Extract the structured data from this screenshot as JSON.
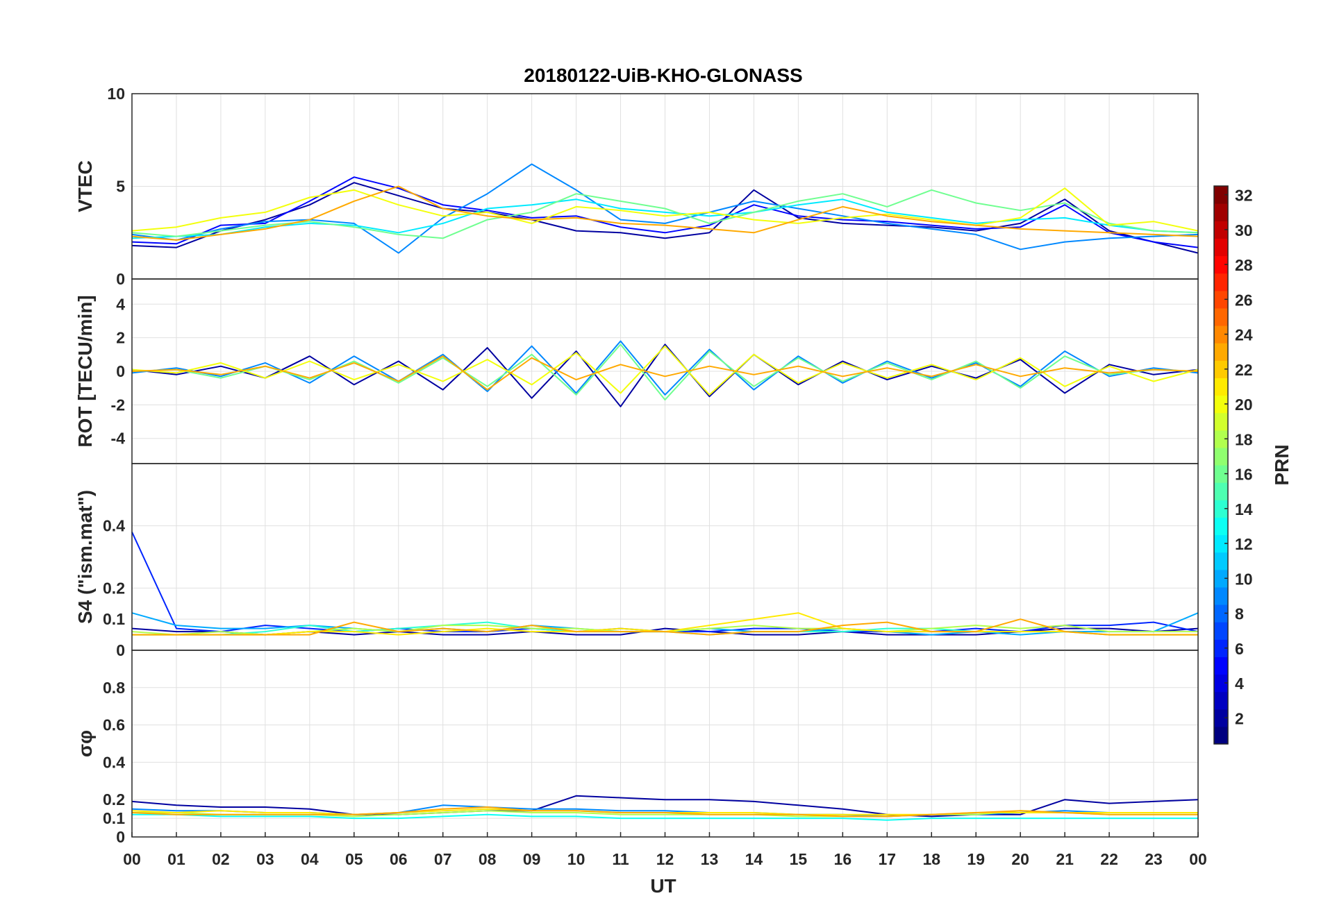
{
  "chart_data": {
    "type": "line",
    "title": "20180122-UiB-KHO-GLONASS",
    "xlabel": "UT",
    "x_ticks": [
      "00",
      "01",
      "02",
      "03",
      "04",
      "05",
      "06",
      "07",
      "08",
      "09",
      "10",
      "11",
      "12",
      "13",
      "14",
      "15",
      "16",
      "17",
      "18",
      "19",
      "20",
      "21",
      "22",
      "23",
      "00"
    ],
    "xlim_hours": [
      0,
      24
    ],
    "grid": true,
    "panels": [
      {
        "id": "vtec",
        "ylabel": "VTEC",
        "ylim": [
          0,
          10
        ],
        "y_ticks": [
          0,
          5,
          10
        ],
        "series": [
          {
            "prn": 2,
            "values": [
              1.8,
              1.7,
              2.6,
              3.2,
              4.0,
              5.2,
              4.5,
              3.8,
              3.6,
              3.2,
              2.6,
              2.5,
              2.2,
              2.5,
              4.8,
              3.3,
              3.0,
              2.9,
              2.8,
              2.6,
              3.0,
              4.3,
              2.6,
              2.0,
              1.4
            ]
          },
          {
            "prn": 5,
            "values": [
              2.0,
              1.9,
              2.9,
              3.0,
              4.2,
              5.5,
              4.9,
              4.0,
              3.7,
              3.3,
              3.4,
              2.8,
              2.5,
              2.9,
              4.0,
              3.4,
              3.2,
              3.1,
              2.9,
              2.7,
              2.8,
              4.0,
              2.5,
              2.0,
              1.7
            ]
          },
          {
            "prn": 9,
            "values": [
              2.4,
              2.1,
              2.7,
              3.1,
              3.2,
              3.0,
              1.4,
              3.3,
              4.6,
              6.2,
              4.8,
              3.2,
              3.0,
              3.6,
              4.2,
              3.8,
              3.4,
              3.0,
              2.7,
              2.4,
              1.6,
              2.0,
              2.2,
              2.3,
              2.4
            ]
          },
          {
            "prn": 12,
            "values": [
              2.2,
              2.3,
              2.4,
              2.8,
              3.0,
              2.9,
              2.5,
              3.0,
              3.8,
              4.0,
              4.3,
              3.8,
              3.6,
              3.4,
              3.6,
              4.0,
              4.3,
              3.6,
              3.3,
              3.0,
              3.2,
              3.3,
              2.9,
              2.6,
              2.5
            ]
          },
          {
            "prn": 16,
            "values": [
              2.5,
              2.3,
              2.6,
              2.9,
              3.1,
              2.8,
              2.4,
              2.2,
              3.2,
              3.6,
              4.6,
              4.2,
              3.8,
              3.0,
              3.6,
              4.2,
              4.6,
              3.9,
              4.8,
              4.1,
              3.7,
              4.1,
              3.0,
              2.6,
              2.5
            ]
          },
          {
            "prn": 20,
            "values": [
              2.6,
              2.8,
              3.3,
              3.6,
              4.4,
              4.8,
              4.0,
              3.4,
              3.6,
              3.0,
              3.9,
              3.7,
              3.4,
              3.6,
              3.2,
              3.0,
              3.3,
              3.5,
              3.2,
              2.9,
              3.3,
              4.9,
              2.9,
              3.1,
              2.6
            ]
          },
          {
            "prn": 23,
            "values": [
              2.3,
              2.1,
              2.4,
              2.7,
              3.2,
              4.2,
              5.0,
              3.8,
              3.4,
              3.2,
              3.3,
              3.0,
              2.9,
              2.7,
              2.5,
              3.2,
              3.9,
              3.4,
              3.1,
              2.9,
              2.7,
              2.6,
              2.5,
              2.4,
              2.3
            ]
          }
        ]
      },
      {
        "id": "rot",
        "ylabel": "ROT [TECU/min]",
        "ylim": [
          -5.5,
          5.5
        ],
        "y_ticks": [
          -4,
          -2,
          0,
          2,
          4
        ],
        "series": [
          {
            "prn": 2,
            "values": [
              0.1,
              -0.2,
              0.3,
              -0.4,
              0.9,
              -0.8,
              0.6,
              -1.1,
              1.4,
              -1.6,
              1.2,
              -2.1,
              1.6,
              -1.5,
              1.0,
              -0.8,
              0.6,
              -0.5,
              0.3,
              -0.4,
              0.7,
              -1.3,
              0.4,
              -0.2,
              0.1
            ]
          },
          {
            "prn": 9,
            "values": [
              -0.1,
              0.2,
              -0.3,
              0.5,
              -0.7,
              0.9,
              -0.6,
              1.0,
              -1.2,
              1.5,
              -1.3,
              1.8,
              -1.4,
              1.3,
              -1.1,
              0.9,
              -0.7,
              0.6,
              -0.4,
              0.5,
              -0.9,
              1.2,
              -0.3,
              0.2,
              -0.1
            ]
          },
          {
            "prn": 16,
            "values": [
              0.0,
              0.1,
              -0.4,
              0.3,
              -0.5,
              0.6,
              -0.7,
              0.8,
              -0.9,
              1.0,
              -1.4,
              1.6,
              -1.7,
              1.2,
              -0.9,
              0.8,
              -0.6,
              0.5,
              -0.5,
              0.6,
              -1.0,
              0.9,
              -0.2,
              0.1,
              0.0
            ]
          },
          {
            "prn": 20,
            "values": [
              0.1,
              -0.1,
              0.5,
              -0.4,
              0.6,
              -0.5,
              0.4,
              -0.6,
              0.7,
              -0.8,
              1.1,
              -1.3,
              1.5,
              -1.4,
              1.0,
              -0.7,
              0.5,
              -0.4,
              0.4,
              -0.5,
              0.8,
              -0.9,
              0.3,
              -0.6,
              0.1
            ]
          },
          {
            "prn": 23,
            "values": [
              0.0,
              0.1,
              -0.2,
              0.3,
              -0.4,
              0.5,
              -0.6,
              0.9,
              -1.1,
              0.8,
              -0.5,
              0.4,
              -0.3,
              0.3,
              -0.2,
              0.3,
              -0.3,
              0.2,
              -0.3,
              0.4,
              -0.3,
              0.2,
              -0.1,
              0.1,
              0.0
            ]
          }
        ]
      },
      {
        "id": "s4",
        "ylabel": "S4 (\"ism.mat\")",
        "ylim": [
          0,
          0.6
        ],
        "y_ticks": [
          0,
          0.1,
          0.2,
          0.4
        ],
        "series": [
          {
            "prn": 2,
            "values": [
              0.07,
              0.06,
              0.06,
              0.05,
              0.06,
              0.05,
              0.06,
              0.05,
              0.05,
              0.06,
              0.05,
              0.05,
              0.07,
              0.06,
              0.05,
              0.05,
              0.06,
              0.05,
              0.05,
              0.05,
              0.06,
              0.07,
              0.07,
              0.06,
              0.07
            ]
          },
          {
            "prn": 6,
            "values": [
              0.38,
              0.07,
              0.06,
              0.08,
              0.07,
              0.06,
              0.07,
              0.06,
              0.06,
              0.07,
              0.06,
              0.07,
              0.06,
              0.06,
              0.07,
              0.07,
              0.06,
              0.06,
              0.06,
              0.07,
              0.06,
              0.08,
              0.08,
              0.09,
              0.06
            ]
          },
          {
            "prn": 10,
            "values": [
              0.12,
              0.08,
              0.07,
              0.07,
              0.08,
              0.07,
              0.06,
              0.07,
              0.06,
              0.08,
              0.07,
              0.06,
              0.06,
              0.07,
              0.06,
              0.06,
              0.07,
              0.06,
              0.05,
              0.06,
              0.05,
              0.06,
              0.06,
              0.06,
              0.12
            ]
          },
          {
            "prn": 14,
            "values": [
              0.05,
              0.05,
              0.05,
              0.06,
              0.08,
              0.06,
              0.07,
              0.08,
              0.09,
              0.07,
              0.06,
              0.06,
              0.06,
              0.05,
              0.06,
              0.06,
              0.06,
              0.07,
              0.07,
              0.06,
              0.06,
              0.06,
              0.05,
              0.05,
              0.05
            ]
          },
          {
            "prn": 18,
            "values": [
              0.06,
              0.05,
              0.06,
              0.05,
              0.06,
              0.07,
              0.06,
              0.08,
              0.08,
              0.07,
              0.07,
              0.06,
              0.06,
              0.07,
              0.08,
              0.07,
              0.07,
              0.06,
              0.07,
              0.08,
              0.07,
              0.08,
              0.06,
              0.06,
              0.06
            ]
          },
          {
            "prn": 21,
            "values": [
              0.05,
              0.05,
              0.05,
              0.05,
              0.06,
              0.06,
              0.05,
              0.06,
              0.07,
              0.06,
              0.06,
              0.07,
              0.06,
              0.08,
              0.1,
              0.12,
              0.07,
              0.06,
              0.06,
              0.06,
              0.06,
              0.06,
              0.05,
              0.05,
              0.05
            ]
          },
          {
            "prn": 23,
            "values": [
              0.05,
              0.05,
              0.05,
              0.05,
              0.05,
              0.09,
              0.06,
              0.07,
              0.06,
              0.08,
              0.06,
              0.06,
              0.06,
              0.05,
              0.06,
              0.06,
              0.08,
              0.09,
              0.06,
              0.06,
              0.1,
              0.06,
              0.05,
              0.05,
              0.05
            ]
          }
        ]
      },
      {
        "id": "sigma",
        "ylabel": "σφ",
        "ylim": [
          0,
          1
        ],
        "y_ticks": [
          0,
          0.1,
          0.2,
          0.4,
          0.6,
          0.8
        ],
        "series": [
          {
            "prn": 2,
            "values": [
              0.19,
              0.17,
              0.16,
              0.16,
              0.15,
              0.12,
              0.12,
              0.13,
              0.14,
              0.14,
              0.22,
              0.21,
              0.2,
              0.2,
              0.19,
              0.17,
              0.15,
              0.12,
              0.11,
              0.12,
              0.12,
              0.2,
              0.18,
              0.19,
              0.2
            ]
          },
          {
            "prn": 9,
            "values": [
              0.15,
              0.14,
              0.14,
              0.13,
              0.13,
              0.12,
              0.13,
              0.17,
              0.16,
              0.15,
              0.15,
              0.14,
              0.14,
              0.13,
              0.13,
              0.12,
              0.12,
              0.11,
              0.12,
              0.12,
              0.13,
              0.14,
              0.13,
              0.13,
              0.13
            ]
          },
          {
            "prn": 13,
            "values": [
              0.12,
              0.12,
              0.11,
              0.11,
              0.11,
              0.1,
              0.1,
              0.11,
              0.12,
              0.11,
              0.11,
              0.1,
              0.1,
              0.1,
              0.1,
              0.1,
              0.1,
              0.09,
              0.1,
              0.1,
              0.1,
              0.1,
              0.1,
              0.1,
              0.1
            ]
          },
          {
            "prn": 18,
            "values": [
              0.13,
              0.13,
              0.12,
              0.12,
              0.12,
              0.11,
              0.12,
              0.13,
              0.14,
              0.13,
              0.13,
              0.12,
              0.12,
              0.12,
              0.12,
              0.11,
              0.11,
              0.11,
              0.12,
              0.12,
              0.14,
              0.13,
              0.12,
              0.12,
              0.12
            ]
          },
          {
            "prn": 21,
            "values": [
              0.14,
              0.13,
              0.14,
              0.13,
              0.13,
              0.12,
              0.13,
              0.14,
              0.15,
              0.14,
              0.14,
              0.13,
              0.13,
              0.13,
              0.13,
              0.12,
              0.12,
              0.12,
              0.12,
              0.13,
              0.13,
              0.13,
              0.13,
              0.13,
              0.13
            ]
          },
          {
            "prn": 23,
            "values": [
              0.13,
              0.12,
              0.12,
              0.12,
              0.12,
              0.12,
              0.13,
              0.15,
              0.16,
              0.14,
              0.14,
              0.13,
              0.13,
              0.12,
              0.12,
              0.12,
              0.11,
              0.11,
              0.12,
              0.13,
              0.14,
              0.13,
              0.12,
              0.12,
              0.12
            ]
          }
        ]
      }
    ],
    "colorbar": {
      "label": "PRN",
      "range": [
        1,
        32
      ],
      "ticks": [
        2,
        4,
        6,
        8,
        10,
        12,
        14,
        16,
        18,
        20,
        22,
        24,
        26,
        28,
        30,
        32
      ],
      "colormap": "jet"
    }
  }
}
